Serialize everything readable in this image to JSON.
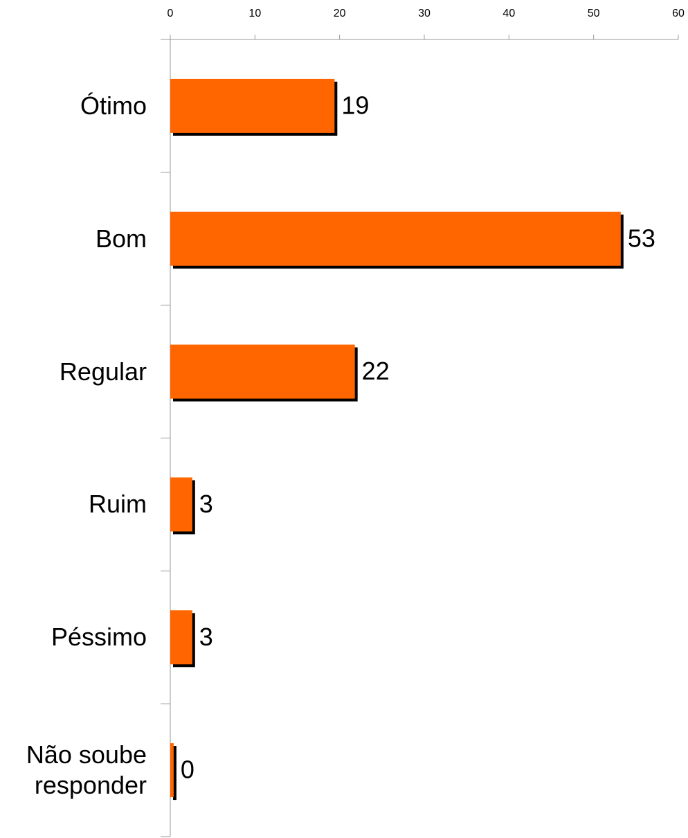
{
  "chart_data": {
    "type": "bar",
    "orientation": "horizontal",
    "categories": [
      "Ótimo",
      "Bom",
      "Regular",
      "Ruim",
      "Péssimo",
      "Não soube responder"
    ],
    "values": [
      19.4,
      53.2,
      21.8,
      2.6,
      2.6,
      0.4
    ],
    "value_labels": [
      "19",
      "53",
      "22",
      "3",
      "3",
      "0"
    ],
    "color": "#ff6600",
    "shadow_color": "#000000",
    "xlim": [
      0,
      60
    ],
    "xticks": [
      0,
      10,
      20,
      30,
      40,
      50,
      60
    ],
    "grid": false
  }
}
